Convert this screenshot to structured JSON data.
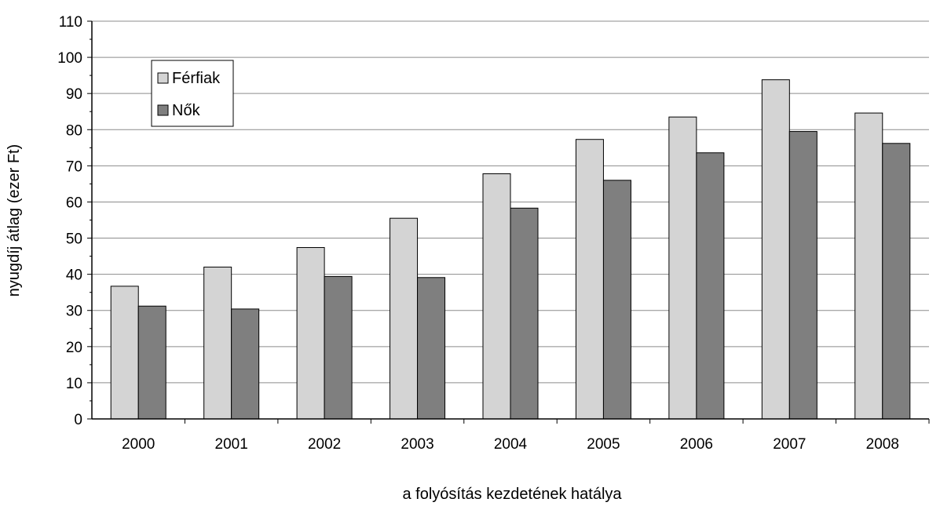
{
  "chart_data": {
    "type": "bar",
    "title": "",
    "xlabel": "a folyósítás kezdetének hatálya",
    "ylabel": "nyugdíj átlag (ezer Ft)",
    "ylim": [
      0,
      110
    ],
    "yticks": [
      0,
      10,
      20,
      30,
      40,
      50,
      60,
      70,
      80,
      90,
      100,
      110
    ],
    "grid": true,
    "legend_position": "top-left",
    "categories": [
      "2000",
      "2001",
      "2002",
      "2003",
      "2004",
      "2005",
      "2006",
      "2007",
      "2008"
    ],
    "series": [
      {
        "name": "Férfiak",
        "color": "#d4d4d4",
        "values": [
          36.7,
          42.0,
          47.4,
          55.5,
          67.8,
          77.3,
          83.5,
          93.8,
          84.6
        ]
      },
      {
        "name": "Nők",
        "color": "#7f7f7f",
        "values": [
          31.2,
          30.4,
          39.4,
          39.1,
          58.3,
          66.0,
          73.6,
          79.5,
          76.2
        ]
      }
    ]
  }
}
